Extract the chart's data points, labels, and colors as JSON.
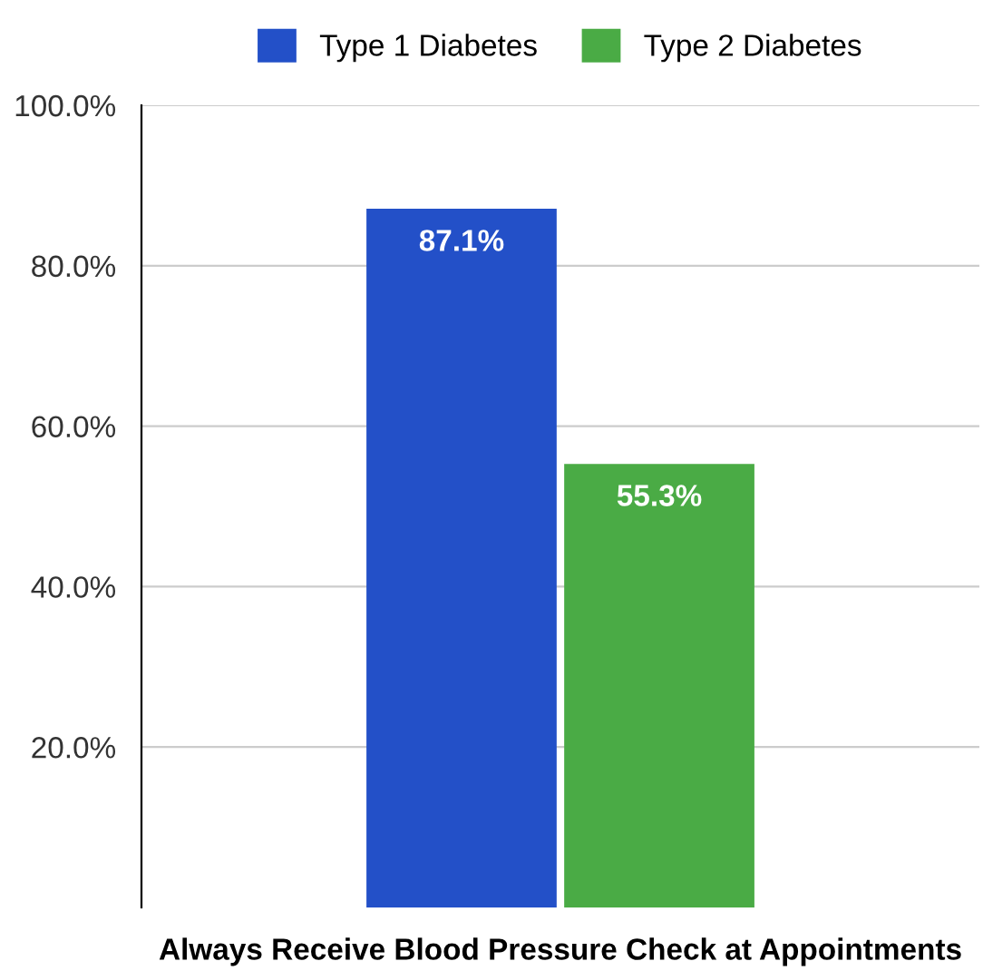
{
  "chart_data": {
    "type": "bar",
    "categories": [
      "Always Receive Blood Pressure Check at Appointments"
    ],
    "series": [
      {
        "name": "Type 1 Diabetes",
        "color": "#2350c8",
        "values": [
          87.1
        ],
        "value_labels": [
          "87.1%"
        ]
      },
      {
        "name": "Type 2 Diabetes",
        "color": "#4aab45",
        "values": [
          55.3
        ],
        "value_labels": [
          "55.3%"
        ]
      }
    ],
    "ylim": [
      0,
      100
    ],
    "yticks": [
      {
        "value": 20,
        "label": "20.0%"
      },
      {
        "value": 40,
        "label": "40.0%"
      },
      {
        "value": 60,
        "label": "60.0%"
      },
      {
        "value": 80,
        "label": "80.0%"
      },
      {
        "value": 100,
        "label": "100.0%"
      }
    ],
    "grid": "y",
    "legend": "top"
  }
}
